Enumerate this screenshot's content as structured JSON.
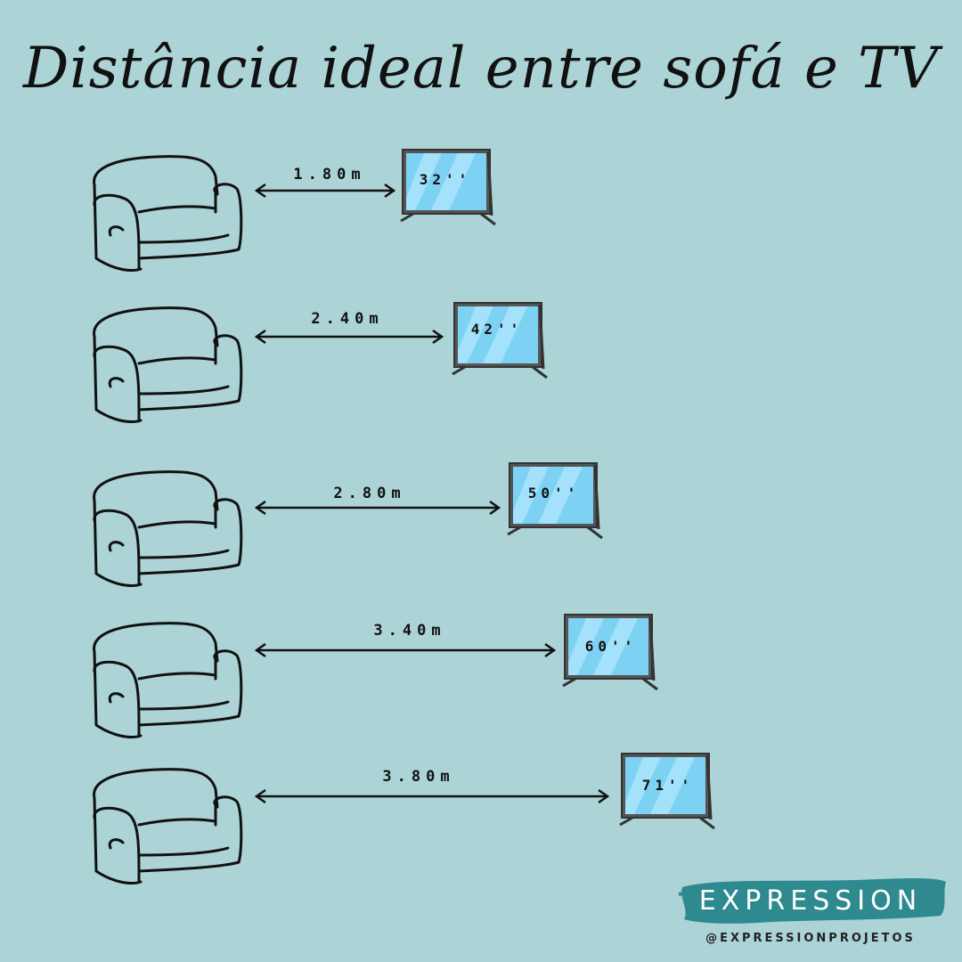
{
  "title": "Distância ideal entre sofá e TV",
  "rows": [
    {
      "distance": "1.80m",
      "size": "32''"
    },
    {
      "distance": "2.40m",
      "size": "42''"
    },
    {
      "distance": "2.80m",
      "size": "50''"
    },
    {
      "distance": "3.40m",
      "size": "60''"
    },
    {
      "distance": "3.80m",
      "size": "71''"
    }
  ],
  "brand": {
    "name": "EXPRESSION",
    "handle": "@EXPRESSIONPROJETOS"
  },
  "colors": {
    "background": "#acd3d6",
    "screen": "#7dd2f4",
    "brand_stroke": "#2e8a8f"
  },
  "icons": {
    "sofa": "sofa-icon",
    "tv": "tv-icon",
    "arrow": "double-arrow-icon"
  }
}
